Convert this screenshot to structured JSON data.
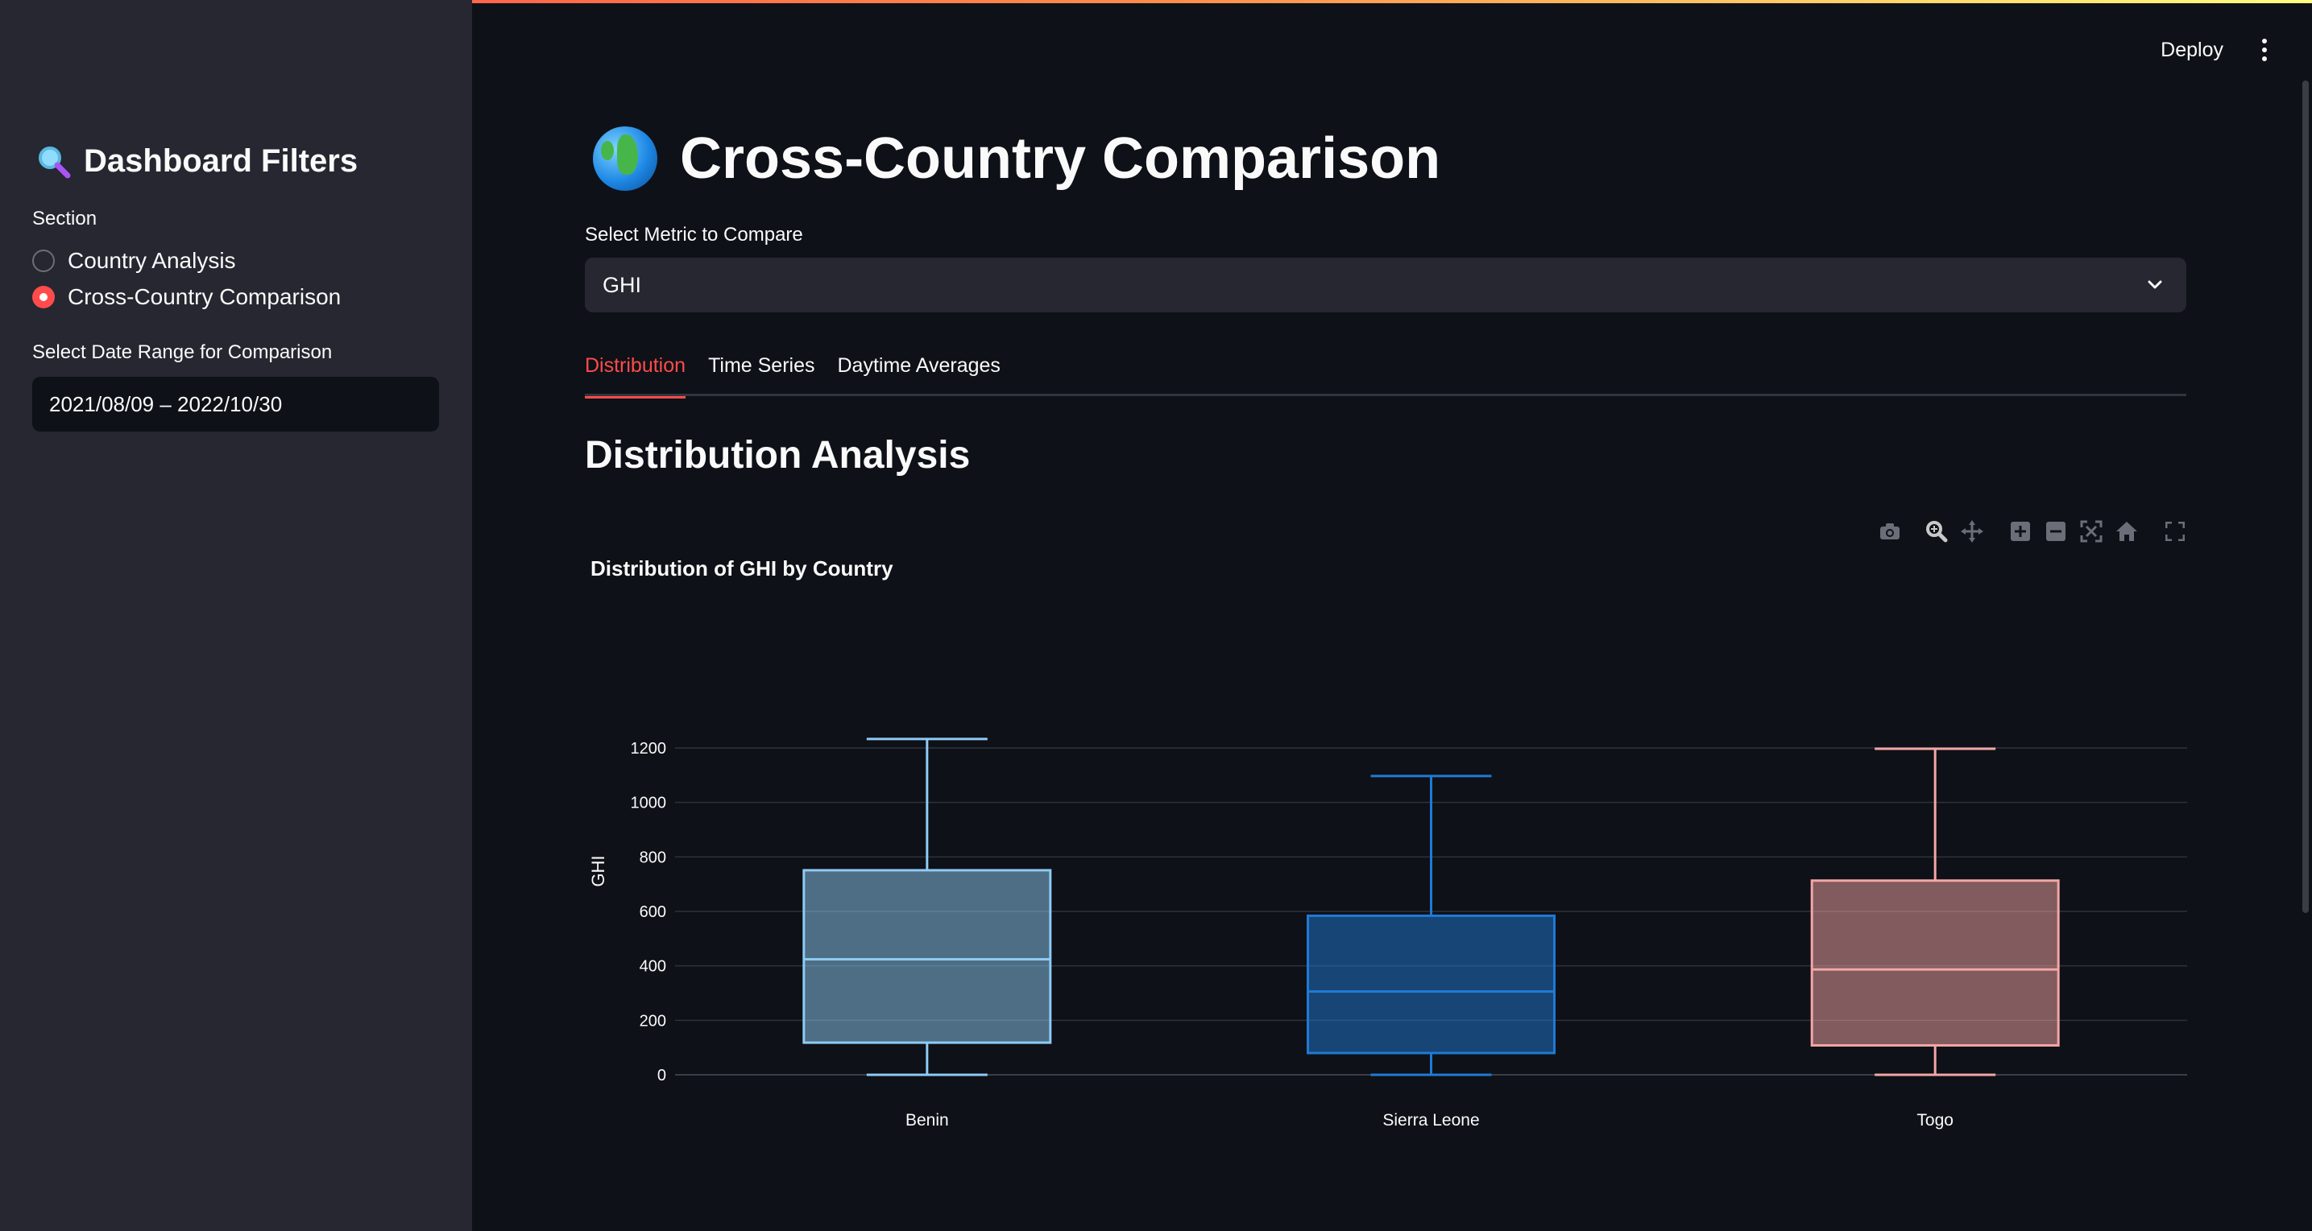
{
  "sidebar": {
    "title": "Dashboard Filters",
    "title_icon": "magnifier-icon",
    "section_label": "Section",
    "options": [
      {
        "label": "Country Analysis",
        "selected": false
      },
      {
        "label": "Cross-Country Comparison",
        "selected": true
      }
    ],
    "date_label": "Select Date Range for Comparison",
    "date_value": "2021/08/09 – 2022/10/30"
  },
  "header": {
    "deploy_label": "Deploy",
    "menu_icon": "kebab-menu-icon"
  },
  "main": {
    "title": "Cross-Country Comparison",
    "title_icon": "globe-icon",
    "metric_label": "Select Metric to Compare",
    "metric_value": "GHI",
    "tabs": [
      {
        "label": "Distribution",
        "active": true
      },
      {
        "label": "Time Series",
        "active": false
      },
      {
        "label": "Daytime Averages",
        "active": false
      }
    ],
    "section_title": "Distribution Analysis"
  },
  "colors": {
    "accent": "#ff4b4b",
    "benin": "#8ecbf5",
    "sierra_leone": "#1f7ad6",
    "togo": "#f4a6a6"
  },
  "chart_data": {
    "type": "box",
    "title": "Distribution of GHI by Country",
    "xlabel": "",
    "ylabel": "GHI",
    "ylim": [
      0,
      1300
    ],
    "yticks": [
      0,
      200,
      400,
      600,
      800,
      1000,
      1200
    ],
    "grid": true,
    "categories": [
      "Benin",
      "Sierra Leone",
      "Togo"
    ],
    "series": [
      {
        "name": "Benin",
        "min": 0,
        "q1": 118,
        "median": 424,
        "q3": 751,
        "max": 1233,
        "color": "#8ecbf5"
      },
      {
        "name": "Sierra Leone",
        "min": 0,
        "q1": 80,
        "median": 306,
        "q3": 584,
        "max": 1097,
        "color": "#1f7ad6"
      },
      {
        "name": "Togo",
        "min": 0,
        "q1": 108,
        "median": 387,
        "q3": 713,
        "max": 1197,
        "color": "#f4a6a6"
      }
    ]
  }
}
